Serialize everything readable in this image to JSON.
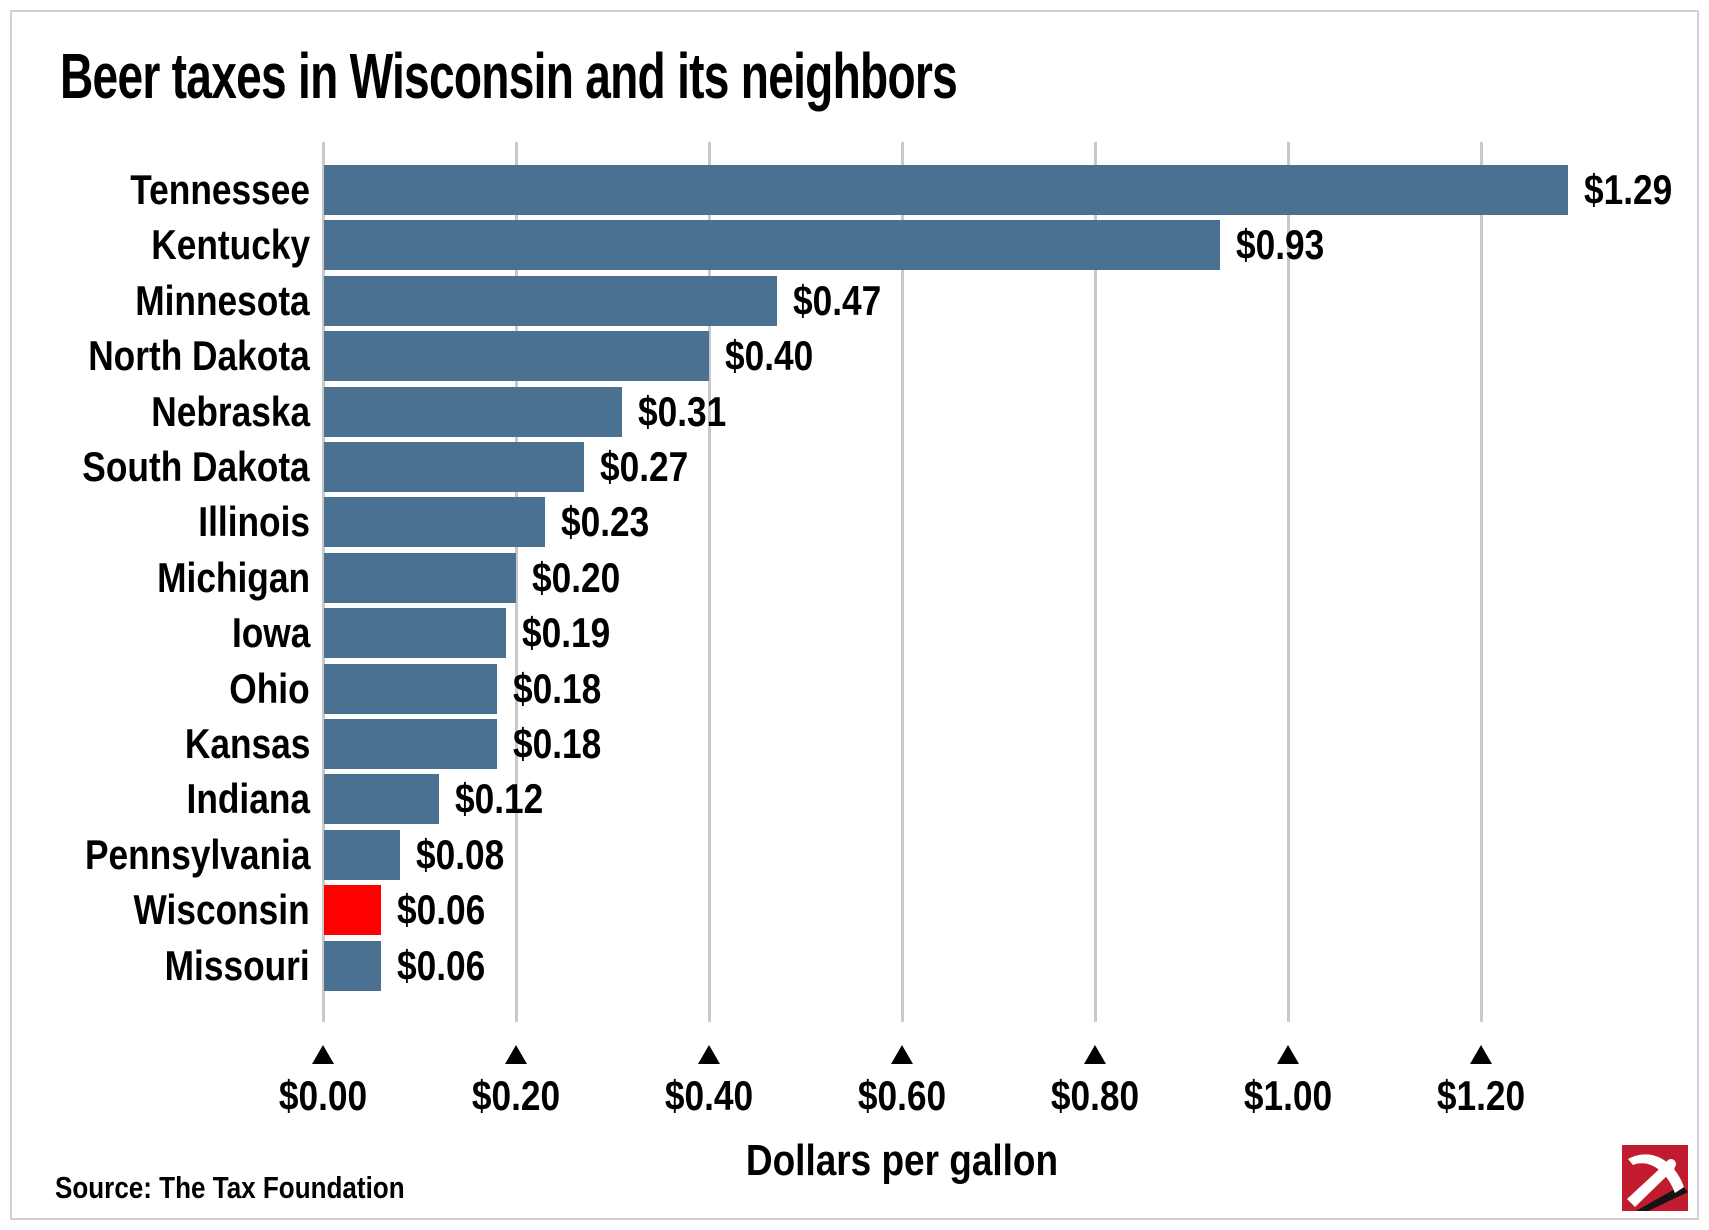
{
  "title": "Beer taxes in Wisconsin and its neighbors",
  "source": "Source: The Tax Foundation",
  "logo": {
    "name": "pickaxe-logo",
    "background": "#c11b2f"
  },
  "chart_data": {
    "type": "bar",
    "orientation": "horizontal",
    "title": "Beer taxes in Wisconsin and its neighbors",
    "xlabel": "Dollars per gallon",
    "categories": [
      "Tennessee",
      "Kentucky",
      "Minnesota",
      "North Dakota",
      "Nebraska",
      "South Dakota",
      "Illinois",
      "Michigan",
      "Iowa",
      "Ohio",
      "Kansas",
      "Indiana",
      "Pennsylvania",
      "Wisconsin",
      "Missouri"
    ],
    "values": [
      1.29,
      0.93,
      0.47,
      0.4,
      0.31,
      0.27,
      0.23,
      0.2,
      0.19,
      0.18,
      0.18,
      0.12,
      0.08,
      0.06,
      0.06
    ],
    "value_labels": [
      "$1.29",
      "$0.93",
      "$0.47",
      "$0.40",
      "$0.31",
      "$0.27",
      "$0.23",
      "$0.20",
      "$0.19",
      "$0.18",
      "$0.18",
      "$0.12",
      "$0.08",
      "$0.06",
      "$0.06"
    ],
    "highlight_category": "Wisconsin",
    "bar_color": "#4a7191",
    "highlight_color": "#fe0000",
    "gridline_color": "#c9c9c9",
    "grid": true,
    "legend": false,
    "xlim": [
      0,
      1.4
    ],
    "x_ticks": [
      0.0,
      0.2,
      0.4,
      0.6,
      0.8,
      1.0,
      1.2
    ],
    "x_tick_labels": [
      "$0.00",
      "$0.20",
      "$0.40",
      "$0.60",
      "$0.80",
      "$1.00",
      "$1.20"
    ]
  }
}
